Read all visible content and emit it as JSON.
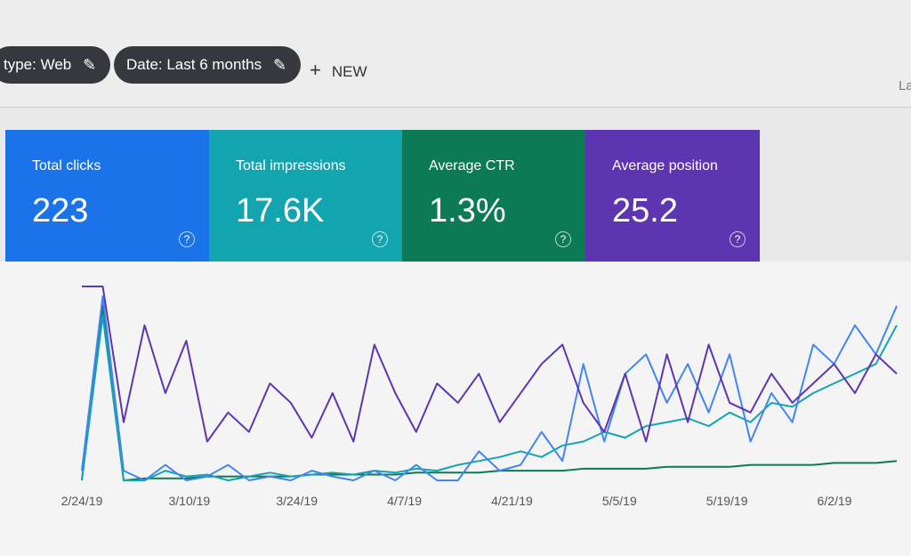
{
  "toolbar": {
    "filters": [
      "type: Web",
      "Date: Last 6 months"
    ],
    "new_button": "NEW",
    "right_text": "La"
  },
  "metrics": [
    {
      "label": "Total clicks",
      "value": "223",
      "color": "#1a73e8"
    },
    {
      "label": "Total impressions",
      "value": "17.6K",
      "color": "#12a4af"
    },
    {
      "label": "Average CTR",
      "value": "1.3%",
      "color": "#0b7a55"
    },
    {
      "label": "Average position",
      "value": "25.2",
      "color": "#5e35b1"
    }
  ],
  "chart_data": {
    "type": "line",
    "xticks": [
      "2/24/19",
      "3/10/19",
      "3/24/19",
      "4/7/19",
      "4/21/19",
      "5/5/19",
      "5/19/19",
      "6/2/19"
    ],
    "ylim": [
      0,
      100
    ],
    "series": [
      {
        "color": "#0b7a55",
        "values": [
          0,
          90,
          0,
          1,
          1,
          1,
          2,
          2,
          2,
          2,
          2,
          3,
          3,
          3,
          3,
          3,
          4,
          4,
          4,
          4,
          5,
          5,
          5,
          5,
          6,
          6,
          6,
          6,
          7,
          7,
          7,
          7,
          8,
          8,
          8,
          8,
          9,
          9,
          9,
          10
        ]
      },
      {
        "color": "#12a4af",
        "values": [
          0,
          85,
          0,
          0,
          5,
          2,
          3,
          0,
          2,
          4,
          2,
          3,
          4,
          3,
          5,
          4,
          6,
          5,
          8,
          10,
          12,
          15,
          12,
          18,
          20,
          25,
          22,
          28,
          30,
          32,
          28,
          35,
          30,
          40,
          38,
          45,
          50,
          55,
          60,
          80
        ]
      },
      {
        "color": "#4285f4",
        "values": [
          5,
          95,
          5,
          0,
          8,
          0,
          2,
          8,
          0,
          2,
          0,
          5,
          2,
          0,
          5,
          0,
          8,
          0,
          0,
          15,
          5,
          8,
          25,
          10,
          60,
          20,
          55,
          65,
          40,
          60,
          35,
          65,
          20,
          45,
          30,
          70,
          60,
          80,
          65,
          90
        ]
      },
      {
        "color": "#5e35b1",
        "values": [
          100,
          100,
          30,
          80,
          45,
          72,
          20,
          35,
          25,
          50,
          40,
          22,
          45,
          20,
          70,
          45,
          25,
          50,
          40,
          55,
          30,
          45,
          60,
          70,
          40,
          25,
          55,
          20,
          65,
          30,
          70,
          40,
          35,
          55,
          40,
          50,
          60,
          45,
          65,
          55
        ]
      }
    ]
  }
}
